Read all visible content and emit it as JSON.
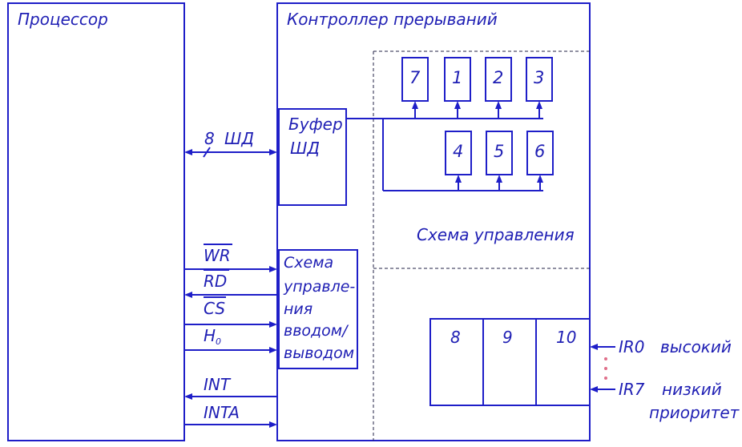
{
  "processor": {
    "title": "Процессор"
  },
  "controller": {
    "title": "Контроллер прерываний"
  },
  "data_bus": {
    "width": "8",
    "label": "ШД"
  },
  "buffer": {
    "line1": "Буфер",
    "line2": "ШД"
  },
  "io_control": {
    "lines": [
      "Схема",
      "управле-",
      "ния",
      "вводом/",
      "выводом"
    ]
  },
  "control_scheme": {
    "label": "Схема управления"
  },
  "registers": {
    "top": [
      "7",
      "1",
      "2",
      "3"
    ],
    "bottom": [
      "4",
      "5",
      "6"
    ]
  },
  "cells": [
    "8",
    "9",
    "10"
  ],
  "signals": {
    "wr": "WR",
    "rd": "RD",
    "cs": "CS",
    "a0": "H",
    "a0_sub": "0",
    "int": "INT",
    "inta": "INTA"
  },
  "irq": {
    "ir0": "IR0",
    "ir0_priority": "высокий",
    "ir7": "IR7",
    "ir7_priority_line1": "низкий",
    "ir7_priority_line2": "приоритет"
  }
}
